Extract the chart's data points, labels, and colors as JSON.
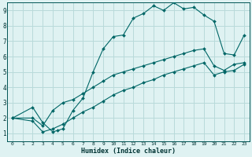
{
  "xlabel": "Humidex (Indice chaleur)",
  "bg_color": "#dff2f2",
  "grid_color": "#b8dada",
  "line_color": "#006666",
  "xlim": [
    -0.5,
    23.5
  ],
  "ylim": [
    0.5,
    9.5
  ],
  "xticks": [
    0,
    1,
    2,
    3,
    4,
    5,
    6,
    7,
    8,
    9,
    10,
    11,
    12,
    13,
    14,
    15,
    16,
    17,
    18,
    19,
    20,
    21,
    22,
    23
  ],
  "yticks": [
    1,
    2,
    3,
    4,
    5,
    6,
    7,
    8,
    9
  ],
  "curve1_x": [
    0,
    2,
    3,
    4,
    4.5,
    5,
    6,
    7,
    8,
    9,
    10,
    11,
    12,
    13,
    14,
    15,
    16,
    17,
    18,
    19,
    20,
    21,
    22,
    23
  ],
  "curve1_y": [
    2,
    2.7,
    1.7,
    1.1,
    1.2,
    1.3,
    2.5,
    3.3,
    5.0,
    6.5,
    7.3,
    7.4,
    8.5,
    8.8,
    9.3,
    9.0,
    9.5,
    9.1,
    9.2,
    8.7,
    8.3,
    6.2,
    6.1,
    7.4
  ],
  "curve2_x": [
    0,
    2,
    3,
    4,
    5,
    6,
    7,
    8,
    9,
    10,
    11,
    12,
    13,
    14,
    15,
    16,
    17,
    18,
    19,
    20,
    21,
    22,
    23
  ],
  "curve2_y": [
    2,
    2.0,
    1.5,
    2.5,
    3.0,
    3.2,
    3.6,
    4.0,
    4.4,
    4.8,
    5.0,
    5.2,
    5.4,
    5.6,
    5.8,
    6.0,
    6.2,
    6.4,
    6.5,
    5.4,
    5.1,
    5.5,
    5.6
  ],
  "curve3_x": [
    0,
    2,
    3,
    4,
    5,
    6,
    7,
    8,
    9,
    10,
    11,
    12,
    13,
    14,
    15,
    16,
    17,
    18,
    19,
    20,
    21,
    22,
    23
  ],
  "curve3_y": [
    2,
    1.8,
    1.1,
    1.3,
    1.6,
    2.0,
    2.4,
    2.7,
    3.1,
    3.5,
    3.8,
    4.0,
    4.3,
    4.5,
    4.8,
    5.0,
    5.2,
    5.4,
    5.6,
    4.8,
    5.0,
    5.1,
    5.5
  ]
}
